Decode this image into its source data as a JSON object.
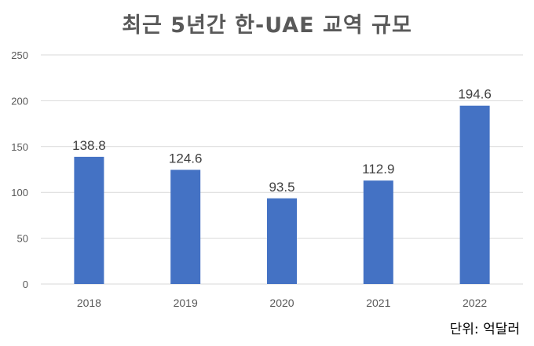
{
  "chart_data": {
    "type": "bar",
    "title": "최근 5년간 한-UAE 교역 규모",
    "unit_note": "단위: 억달러",
    "categories": [
      "2018",
      "2019",
      "2020",
      "2021",
      "2022"
    ],
    "values": [
      138.8,
      124.6,
      93.5,
      112.9,
      194.6
    ],
    "value_labels": [
      "138.8",
      "124.6",
      "93.5",
      "112.9",
      "194.6"
    ],
    "ylim": [
      0,
      250
    ],
    "yticks": [
      "0",
      "50",
      "100",
      "150",
      "200",
      "250"
    ],
    "grid": true,
    "bar_color": "#4472C4"
  }
}
